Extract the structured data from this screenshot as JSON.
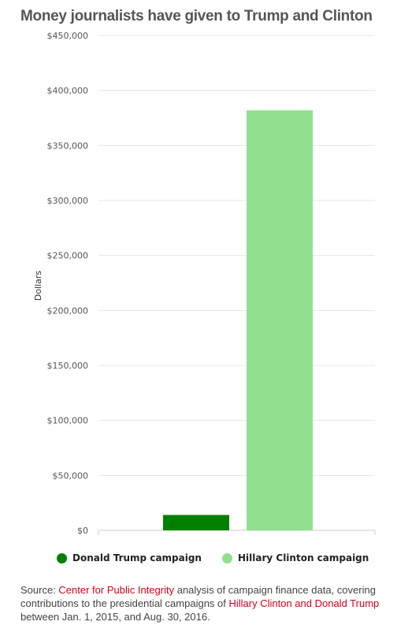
{
  "colors": {
    "trump": "#008000",
    "clinton": "#90e090",
    "grid": "#e5e5e5",
    "link": "#d0021b"
  },
  "chart_data": {
    "type": "bar",
    "title": "Money journalists have given to Trump and Clinton",
    "ylabel": "Dollars",
    "xlabel": "",
    "ylim": [
      0,
      450000
    ],
    "yticks": [
      0,
      50000,
      100000,
      150000,
      200000,
      250000,
      300000,
      350000,
      400000,
      450000
    ],
    "ytick_labels": [
      "$0",
      "$50,000",
      "$100,000",
      "$150,000",
      "$200,000",
      "$250,000",
      "$300,000",
      "$350,000",
      "$400,000",
      "$450,000"
    ],
    "grid": true,
    "legend_position": "bottom",
    "series": [
      {
        "name": "Donald Trump campaign",
        "value": 14000,
        "color": "#008000"
      },
      {
        "name": "Hillary Clinton campaign",
        "value": 382000,
        "color": "#90e090"
      }
    ]
  },
  "source": {
    "prefix": "Source: ",
    "link1": "Center for Public Integrity",
    "middle": " analysis of campaign finance data, covering contributions to the presidential campaigns of ",
    "link2": "Hillary Clinton and Donald Trump",
    "suffix": " between Jan. 1, 2015, and Aug. 30, 2016."
  }
}
